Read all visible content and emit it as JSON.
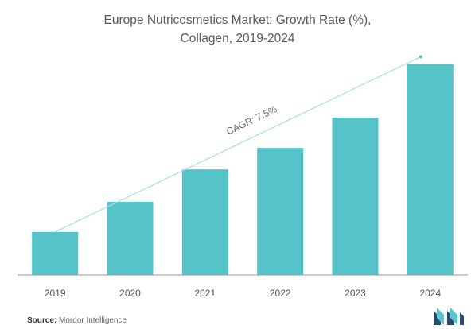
{
  "chart_data": {
    "type": "bar",
    "title_line1": "Europe Nutricosmetics Market: Growth Rate (%),",
    "title_line2": "Collagen, 2019-2024",
    "categories": [
      "2019",
      "2020",
      "2021",
      "2022",
      "2023",
      "2024"
    ],
    "values": [
      20,
      34,
      49,
      59,
      73,
      98
    ],
    "ylim": [
      0,
      100
    ],
    "xlabel": "",
    "ylabel": "",
    "grid": false,
    "legend": "none",
    "annotation": "CAGR: 7.5%",
    "bar_color": "#55c3c8",
    "trend_color": "#a8dfe2"
  },
  "source": {
    "label": "Source:",
    "text": "Mordor Intelligence"
  }
}
